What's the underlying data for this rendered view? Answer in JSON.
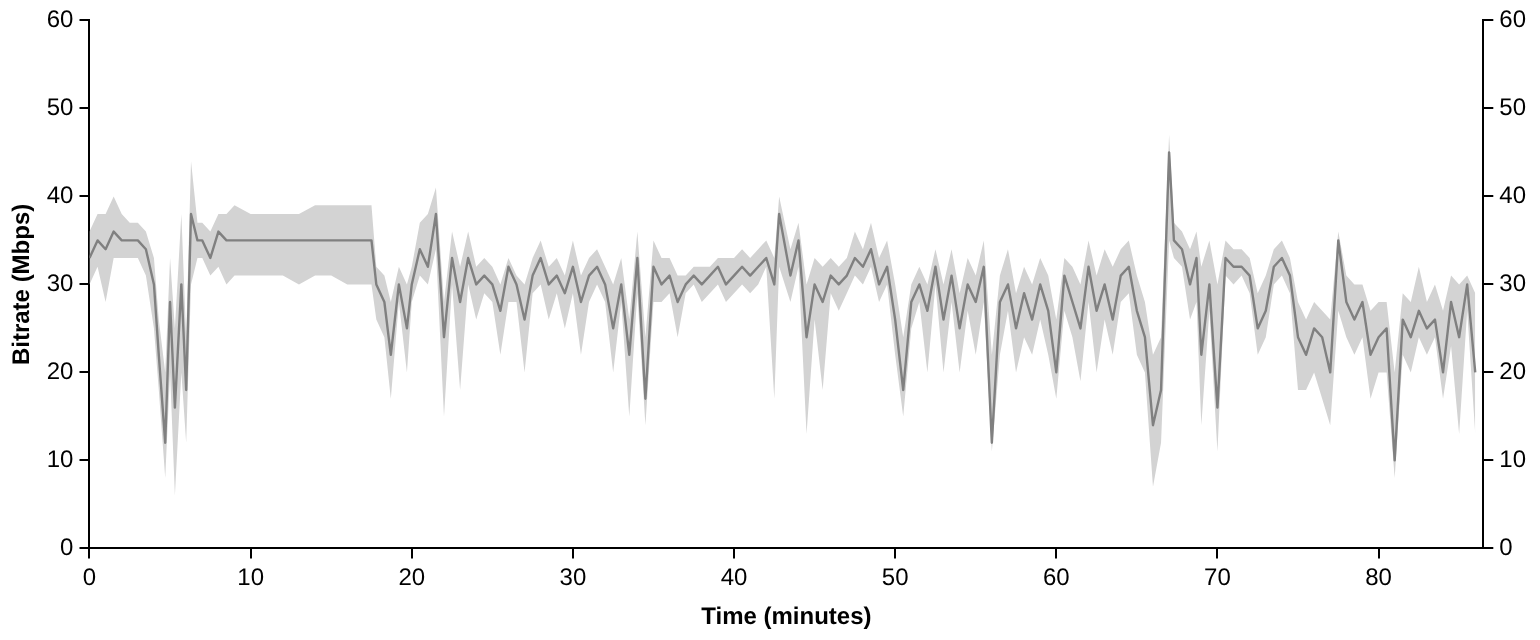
{
  "chart_data": {
    "type": "line",
    "xlabel": "Time (minutes)",
    "ylabel": "Bitrate (Mbps)",
    "xlim": [
      0,
      86.5
    ],
    "xticks": [
      0,
      10,
      20,
      30,
      40,
      50,
      60,
      70,
      80
    ],
    "ylim": [
      0,
      60
    ],
    "yticks": [
      0,
      10,
      20,
      30,
      40,
      50,
      60
    ],
    "y2lim": [
      0,
      60
    ],
    "y2ticks": [
      0,
      10,
      20,
      30,
      40,
      50,
      60
    ],
    "x": [
      0,
      0.5,
      1,
      1.5,
      2,
      2.5,
      3,
      3.5,
      4,
      4.3,
      4.7,
      5,
      5.3,
      5.7,
      6,
      6.3,
      6.7,
      7,
      7.5,
      8,
      8.5,
      9,
      10,
      11,
      12,
      13,
      14,
      15,
      16,
      17,
      17.5,
      17.8,
      18.3,
      18.7,
      19.2,
      19.7,
      20,
      20.5,
      21,
      21.5,
      22,
      22.5,
      23,
      23.5,
      24,
      24.5,
      25,
      25.5,
      26,
      26.5,
      27,
      27.5,
      28,
      28.5,
      29,
      29.5,
      30,
      30.5,
      31,
      31.5,
      32,
      32.5,
      33,
      33.5,
      34,
      34.5,
      35,
      35.5,
      36,
      36.5,
      37,
      37.5,
      38,
      38.5,
      39,
      39.5,
      40,
      40.5,
      41,
      41.5,
      42,
      42.5,
      42.8,
      43.5,
      44,
      44.5,
      45,
      45.5,
      46,
      46.5,
      47,
      47.5,
      48,
      48.5,
      49,
      49.5,
      50,
      50.5,
      51,
      51.5,
      52,
      52.5,
      53,
      53.5,
      54,
      54.5,
      55,
      55.5,
      56,
      56.5,
      57,
      57.5,
      58,
      58.5,
      59,
      59.5,
      60,
      60.5,
      61,
      61.5,
      62,
      62.5,
      63,
      63.5,
      64,
      64.5,
      65,
      65.5,
      66,
      66.5,
      67,
      67.3,
      67.8,
      68.3,
      68.7,
      69,
      69.5,
      70,
      70.5,
      71,
      71.5,
      72,
      72.5,
      73,
      73.5,
      74,
      74.5,
      75,
      75.5,
      76,
      76.5,
      77,
      77.5,
      78,
      78.5,
      79,
      79.5,
      80,
      80.5,
      81,
      81.5,
      82,
      82.5,
      83,
      83.5,
      84,
      84.5,
      85,
      85.5,
      86
    ],
    "series": [
      {
        "color": "#808080",
        "values": [
          33,
          35,
          34,
          36,
          35,
          35,
          35,
          34,
          30,
          22,
          12,
          28,
          16,
          30,
          18,
          38,
          35,
          35,
          33,
          36,
          35,
          35,
          35,
          35,
          35,
          35,
          35,
          35,
          35,
          35,
          35,
          30,
          28,
          22,
          30,
          25,
          30,
          34,
          32,
          38,
          24,
          33,
          28,
          33,
          30,
          31,
          30,
          27,
          32,
          30,
          26,
          31,
          33,
          30,
          31,
          29,
          32,
          28,
          31,
          32,
          30,
          25,
          30,
          22,
          33,
          17,
          32,
          30,
          31,
          28,
          30,
          31,
          30,
          31,
          32,
          30,
          31,
          32,
          31,
          32,
          33,
          30,
          38,
          31,
          35,
          24,
          30,
          28,
          31,
          30,
          31,
          33,
          32,
          34,
          30,
          32,
          26,
          18,
          28,
          30,
          27,
          32,
          26,
          31,
          25,
          30,
          28,
          32,
          12,
          28,
          30,
          25,
          29,
          26,
          30,
          27,
          20,
          31,
          28,
          25,
          32,
          27,
          30,
          26,
          31,
          32,
          27,
          24,
          14,
          18,
          45,
          35,
          34,
          30,
          33,
          22,
          30,
          16,
          33,
          32,
          32,
          31,
          25,
          27,
          32,
          33,
          31,
          24,
          22,
          25,
          24,
          20,
          35,
          28,
          26,
          28,
          22,
          24,
          25,
          10,
          26,
          24,
          27,
          25,
          26,
          20,
          28,
          24,
          30,
          20
        ],
        "lower": [
          30,
          32,
          28,
          33,
          33,
          33,
          33,
          31,
          25,
          18,
          8,
          20,
          6,
          20,
          12,
          30,
          33,
          33,
          31,
          32,
          30,
          31,
          31,
          31,
          31,
          30,
          31,
          31,
          30,
          30,
          30,
          26,
          24,
          17,
          28,
          20,
          28,
          31,
          30,
          34,
          15,
          30,
          18,
          30,
          26,
          29,
          28,
          22,
          28,
          28,
          20,
          29,
          30,
          26,
          29,
          25,
          29,
          22,
          28,
          30,
          28,
          20,
          28,
          15,
          29,
          14,
          28,
          28,
          29,
          24,
          29,
          30,
          28,
          29,
          30,
          28,
          29,
          30,
          29,
          30,
          32,
          17,
          32,
          28,
          32,
          13,
          26,
          18,
          29,
          27,
          29,
          31,
          30,
          32,
          28,
          30,
          22,
          15,
          25,
          28,
          20,
          30,
          20,
          28,
          20,
          27,
          22,
          28,
          11,
          22,
          27,
          20,
          24,
          22,
          26,
          22,
          17,
          27,
          24,
          19,
          28,
          20,
          26,
          22,
          28,
          29,
          22,
          20,
          7,
          12,
          35,
          33,
          32,
          26,
          28,
          14,
          27,
          11,
          31,
          30,
          31,
          29,
          22,
          24,
          30,
          31,
          29,
          18,
          18,
          20,
          17,
          14,
          27,
          24,
          22,
          24,
          17,
          20,
          20,
          8,
          22,
          20,
          24,
          22,
          24,
          17,
          23,
          13,
          27,
          13
        ],
        "upper": [
          36,
          38,
          38,
          40,
          38,
          37,
          37,
          36,
          33,
          26,
          20,
          33,
          25,
          38,
          24,
          44,
          37,
          37,
          36,
          38,
          38,
          39,
          38,
          38,
          38,
          38,
          39,
          39,
          39,
          39,
          39,
          32,
          31,
          28,
          32,
          30,
          32,
          37,
          38,
          41,
          28,
          36,
          32,
          36,
          32,
          33,
          32,
          30,
          33,
          31,
          30,
          33,
          35,
          32,
          33,
          31,
          35,
          31,
          33,
          34,
          32,
          30,
          33,
          26,
          36,
          24,
          35,
          33,
          33,
          31,
          31,
          32,
          32,
          32,
          33,
          33,
          33,
          34,
          33,
          34,
          35,
          33,
          40,
          34,
          37,
          30,
          33,
          32,
          33,
          32,
          33,
          36,
          34,
          37,
          33,
          35,
          30,
          24,
          30,
          32,
          30,
          34,
          30,
          34,
          29,
          33,
          31,
          35,
          22,
          31,
          34,
          29,
          32,
          30,
          33,
          31,
          26,
          33,
          32,
          30,
          35,
          31,
          34,
          32,
          34,
          35,
          31,
          28,
          22,
          24,
          47,
          37,
          36,
          34,
          36,
          32,
          35,
          30,
          35,
          34,
          34,
          33,
          29,
          31,
          34,
          35,
          33,
          28,
          26,
          28,
          27,
          26,
          36,
          31,
          30,
          30,
          27,
          28,
          28,
          20,
          29,
          28,
          32,
          28,
          30,
          27,
          31,
          30,
          31,
          29
        ]
      }
    ]
  }
}
